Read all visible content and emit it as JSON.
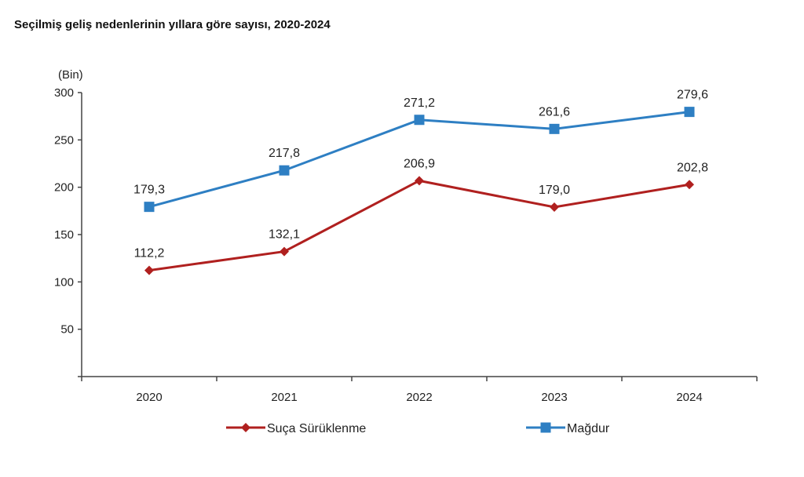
{
  "chart_data": {
    "type": "line",
    "title": "Seçilmiş geliş nedenlerinin yıllara göre sayısı, 2020-2024",
    "ylabel": "(Bin)",
    "xlabel": "",
    "categories": [
      "2020",
      "2021",
      "2022",
      "2023",
      "2024"
    ],
    "ylim": [
      0,
      300
    ],
    "yticks": [
      50,
      100,
      150,
      200,
      250,
      300
    ],
    "grid": false,
    "legend_position": "bottom",
    "series": [
      {
        "name": "Suça Sürüklenme",
        "values": [
          112.2,
          132.1,
          206.9,
          179.0,
          202.8
        ],
        "labels": [
          "112,2",
          "132,1",
          "206,9",
          "179,0",
          "202,8"
        ],
        "color": "#B0201F",
        "marker": "diamond"
      },
      {
        "name": "Mağdur",
        "values": [
          179.3,
          217.8,
          271.2,
          261.6,
          279.6
        ],
        "labels": [
          "179,3",
          "217,8",
          "271,2",
          "261,6",
          "279,6"
        ],
        "color": "#2E7FC3",
        "marker": "square"
      }
    ]
  }
}
